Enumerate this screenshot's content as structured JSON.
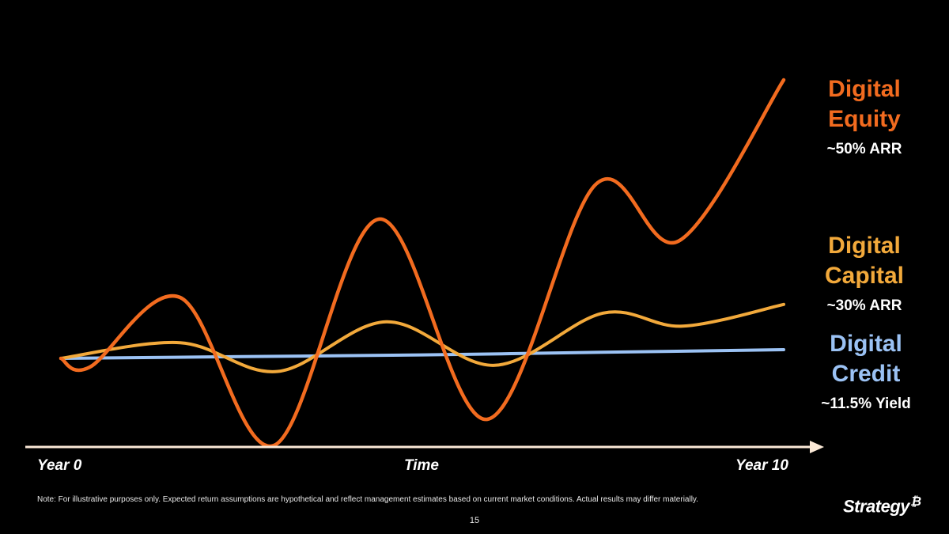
{
  "chart_data": {
    "type": "line",
    "title": "",
    "xlabel": "Time",
    "ylabel": "",
    "x_tick_labels": {
      "start": "Year 0",
      "middle": "Time",
      "end": "Year 10"
    },
    "xlim": [
      0,
      10
    ],
    "ylim": [
      -1.5,
      6
    ],
    "grid": false,
    "series": [
      {
        "name": "Digital Equity",
        "name_lines": [
          "Digital",
          "Equity"
        ],
        "rate": "~50% ARR",
        "color": "#f26b1f",
        "x": [
          0,
          0.4,
          1.65,
          2.95,
          4.4,
          5.9,
          7.4,
          8.55,
          10
        ],
        "y": [
          0,
          -0.1,
          0.7,
          -1.0,
          1.6,
          -0.7,
          2.0,
          1.35,
          3.2
        ]
      },
      {
        "name": "Digital Capital",
        "name_lines": [
          "Digital",
          "Capital"
        ],
        "rate": "~30% ARR",
        "color": "#f2a93b",
        "x": [
          0,
          1.65,
          3.0,
          4.5,
          6.0,
          7.5,
          8.6,
          10
        ],
        "y": [
          0,
          0.18,
          -0.15,
          0.42,
          -0.08,
          0.52,
          0.37,
          0.62
        ]
      },
      {
        "name": "Digital Credit",
        "name_lines": [
          "Digital",
          "Credit"
        ],
        "rate": "~11.5% Yield",
        "color": "#9bc2f4",
        "x": [
          0,
          2.5,
          5.0,
          7.5,
          10
        ],
        "y": [
          0,
          0.02,
          0.04,
          0.07,
          0.1
        ]
      }
    ]
  },
  "footer": {
    "note": "Note: For illustrative purposes only. Expected return assumptions are hypothetical and reflect management estimates based on current market conditions. Actual results may differ materially.",
    "page_number": "15",
    "logo_text": "Strategy",
    "logo_mark": "₿"
  },
  "colors": {
    "background": "#000000",
    "axis": "#fbe9d7"
  }
}
